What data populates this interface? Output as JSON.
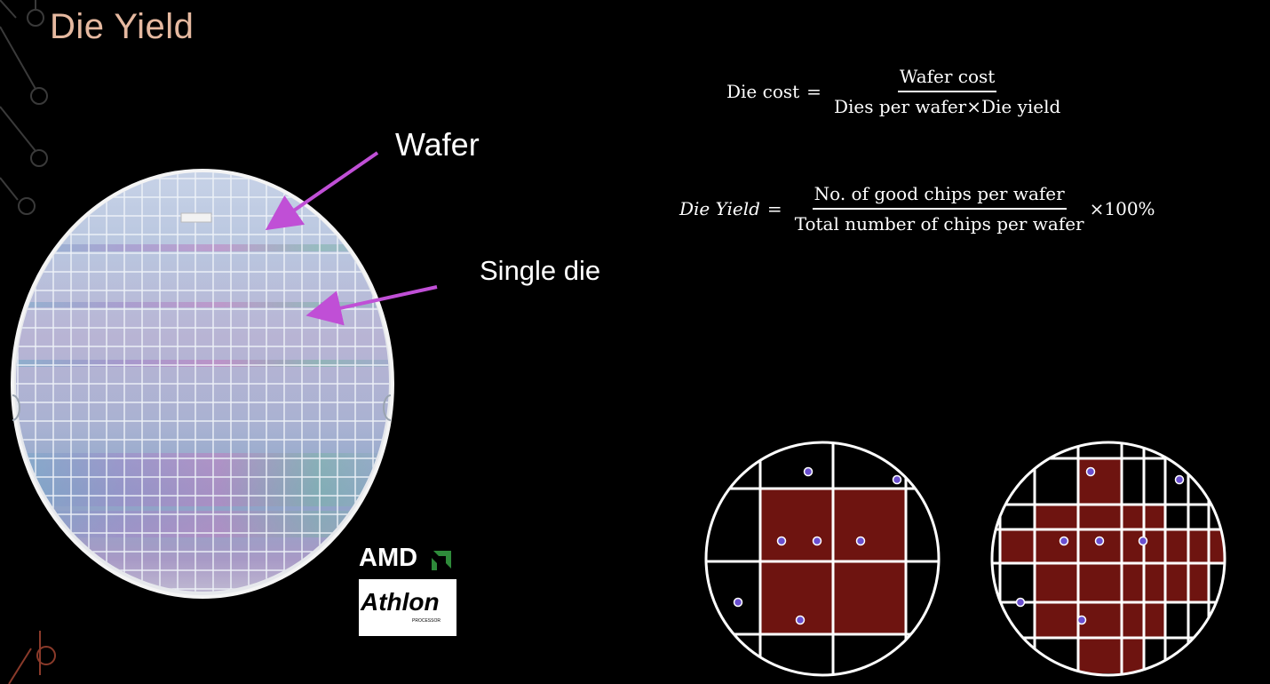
{
  "slide": {
    "title": "Die Yield"
  },
  "wafer_image": {
    "label_wafer": "Wafer",
    "label_single_die": "Single die",
    "arrow_color": "#c04fd6",
    "logo": {
      "brand": "AMD",
      "product": "Athlon",
      "product_sub": "PROCESSOR"
    }
  },
  "formulas": {
    "die_cost": {
      "lhs": "Die cost",
      "equals": "=",
      "numerator": "Wafer cost",
      "denominator": "Dies per wafer×Die yield"
    },
    "die_yield": {
      "lhs": "Die Yield",
      "equals": "=",
      "numerator": "No.  of good chips per wafer",
      "denominator": "Total number of chips per wafer",
      "suffix": "×100%"
    }
  },
  "diagram": {
    "good_die_color": "#6e1410",
    "defect_color": "#6a4fd0",
    "grid_color": "#ffffff"
  },
  "colors": {
    "background": "#000000",
    "title": "#e6b9a0",
    "text": "#ffffff",
    "decor": "#3a3a3a"
  }
}
